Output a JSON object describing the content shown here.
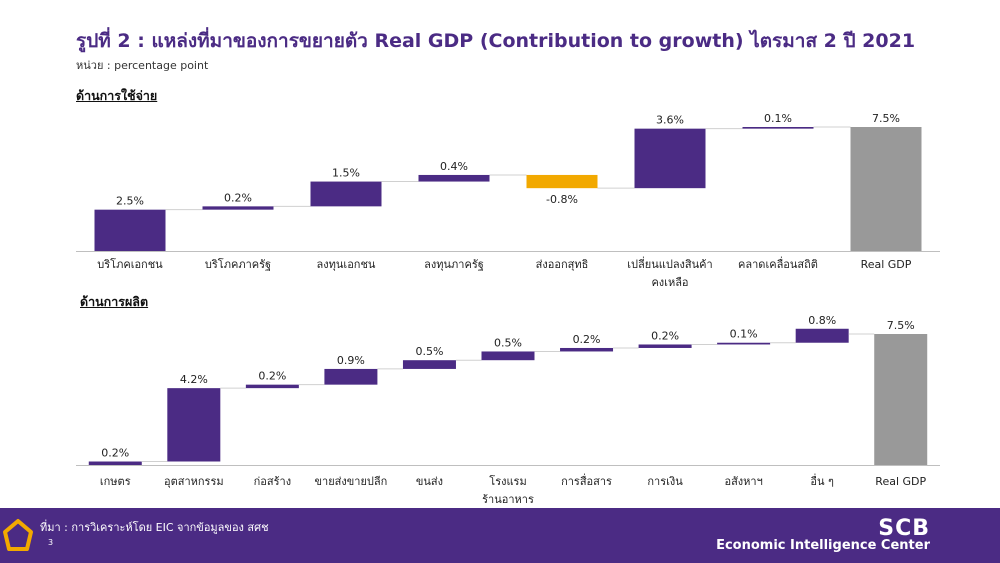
{
  "title": "รูปที่ 2 : แหล่งที่มาของการขยายตัว Real GDP (Contribution to growth) ไตรมาส 2 ปี 2021",
  "unit": "หน่วย : percentage point",
  "footer": {
    "source": "ที่มา : การวิเคราะห์โดย EIC จากข้อมูลของ สศช",
    "page": "3",
    "logo_main": "SCB",
    "logo_sub": "Economic Intelligence Center"
  },
  "colors": {
    "accent": "#4b2b84",
    "negative": "#f2a900",
    "total": "#999999"
  },
  "chart_data": [
    {
      "type": "bar",
      "subtype": "waterfall",
      "section": "ด้านการใช้จ่าย",
      "categories": [
        [
          "บริโภคเอกชน"
        ],
        [
          "บริโภคภาครัฐ"
        ],
        [
          "ลงทุนเอกชน"
        ],
        [
          "ลงทุนภาครัฐ"
        ],
        [
          "ส่งออกสุทธิ"
        ],
        [
          "เปลี่ยนแปลงสินค้า",
          "คงเหลือ"
        ],
        [
          "คลาดเคลื่อนสถิติ"
        ],
        [
          "Real GDP"
        ]
      ],
      "values": [
        2.5,
        0.2,
        1.5,
        0.4,
        -0.8,
        3.6,
        0.1,
        7.5
      ],
      "labels": [
        "2.5%",
        "0.2%",
        "1.5%",
        "0.4%",
        "-0.8%",
        "3.6%",
        "0.1%",
        "7.5%"
      ],
      "total_index": 7
    },
    {
      "type": "bar",
      "subtype": "waterfall",
      "section": "ด้านการผลิต",
      "categories": [
        [
          "เกษตร"
        ],
        [
          "อุตสาหกรรม"
        ],
        [
          "ก่อสร้าง"
        ],
        [
          "ขายส่งขายปลีก"
        ],
        [
          "ขนส่ง"
        ],
        [
          "โรงแรม",
          "ร้านอาหาร"
        ],
        [
          "การสื่อสาร"
        ],
        [
          "การเงิน"
        ],
        [
          "อสังหาฯ"
        ],
        [
          "อื่น ๆ"
        ],
        [
          "Real GDP"
        ]
      ],
      "values": [
        0.2,
        4.2,
        0.2,
        0.9,
        0.5,
        0.5,
        0.2,
        0.2,
        0.1,
        0.8,
        7.5
      ],
      "labels": [
        "0.2%",
        "4.2%",
        "0.2%",
        "0.9%",
        "0.5%",
        "0.5%",
        "0.2%",
        "0.2%",
        "0.1%",
        "0.8%",
        "7.5%"
      ],
      "total_index": 10
    }
  ]
}
